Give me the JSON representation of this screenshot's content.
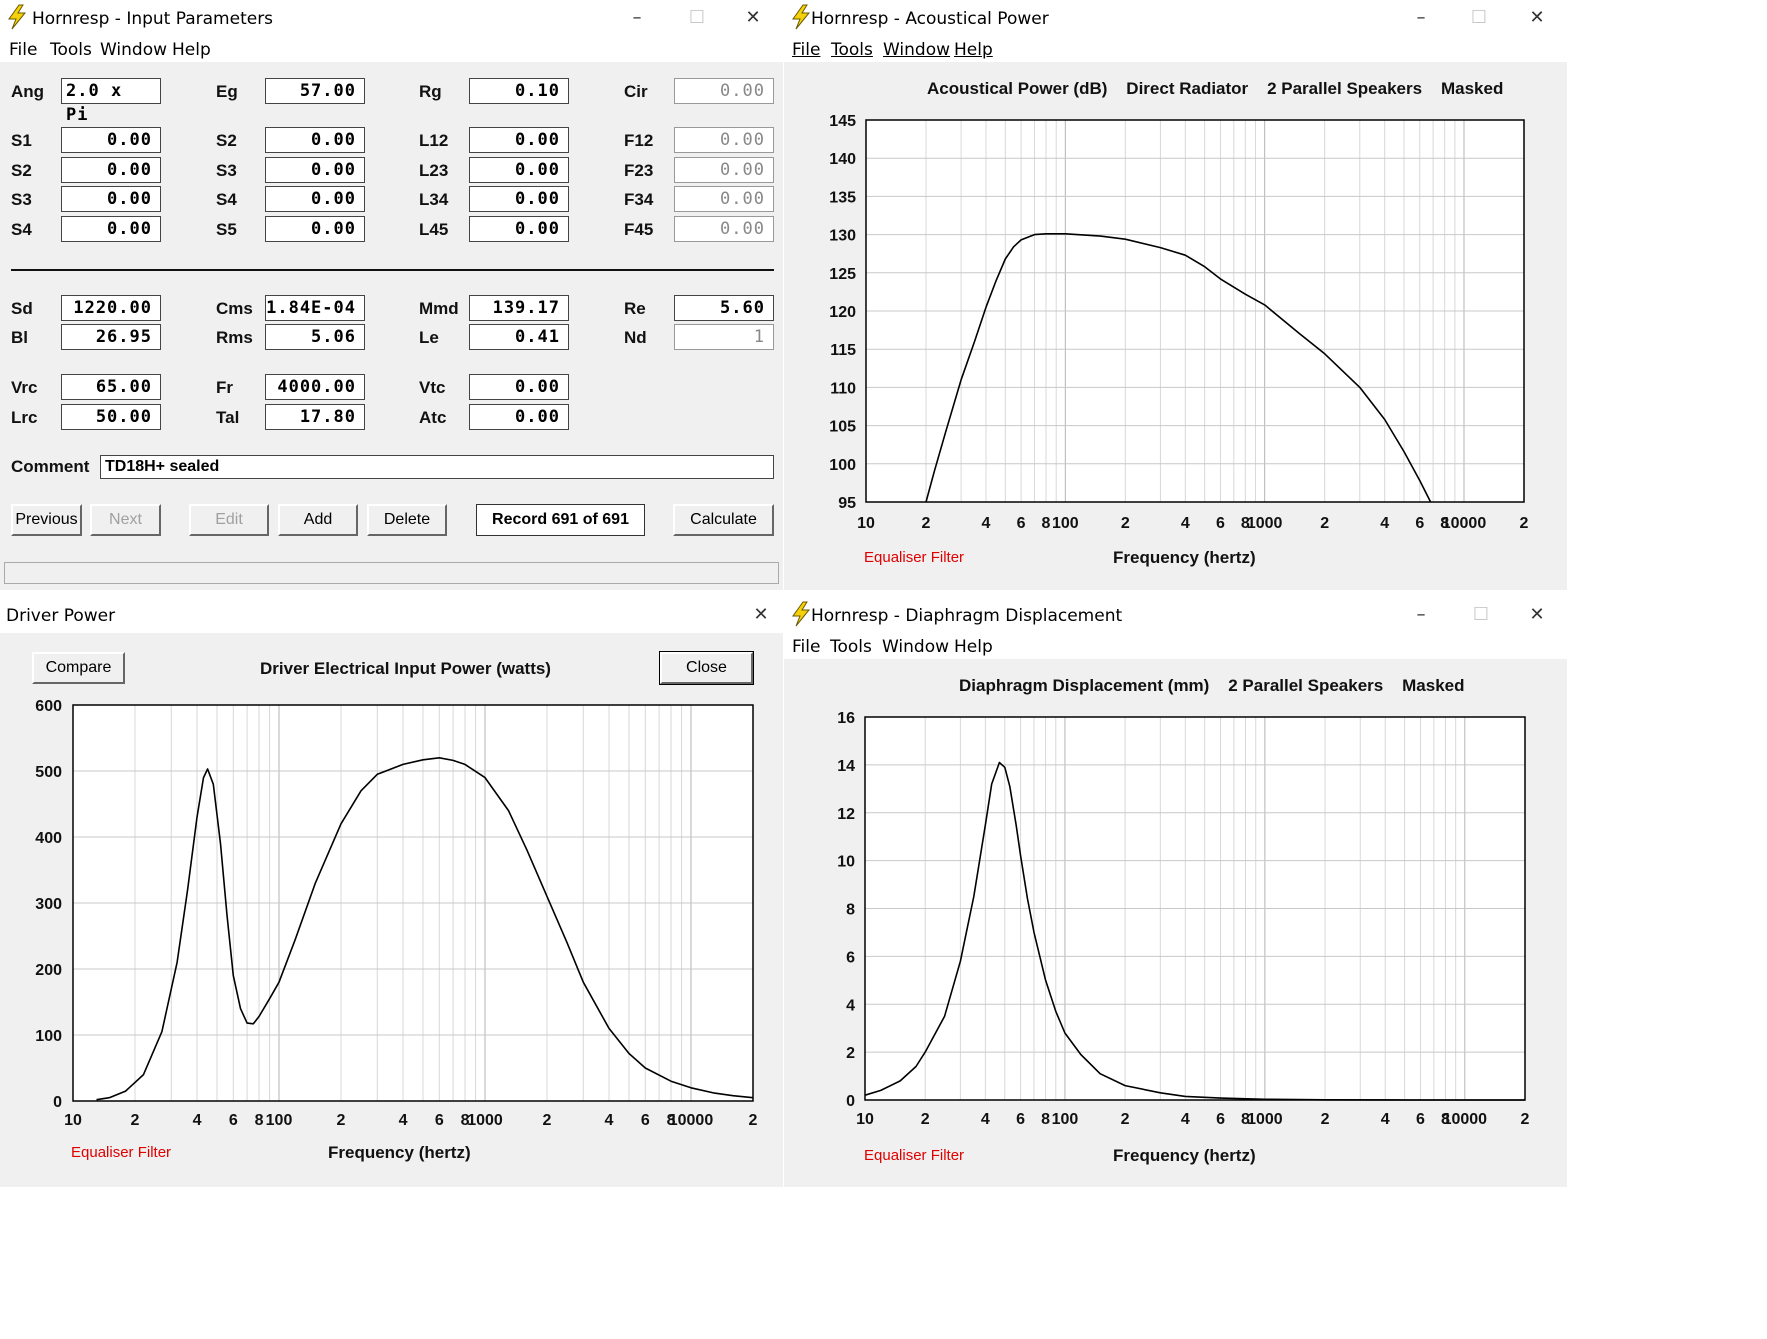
{
  "colors": {
    "curve": "#000000",
    "grid": "#c8c8c8",
    "eq_filter": "#e00000",
    "window_bg": "#f0f0f0"
  },
  "icons": {
    "app": "lightning-bolt-icon",
    "minimize": "minimize-icon",
    "maximize": "maximize-icon",
    "close": "close-icon"
  },
  "window_buttons": {
    "minimize": "–",
    "maximize": "☐",
    "close": "✕"
  },
  "input_window": {
    "title": "Hornresp - Input Parameters",
    "menu": {
      "file": "File",
      "tools": "Tools",
      "window": "Window",
      "help": "Help"
    },
    "params": {
      "Ang": {
        "label": "Ang",
        "value": "2.0 x Pi"
      },
      "Eg": {
        "label": "Eg",
        "value": "57.00"
      },
      "Rg": {
        "label": "Rg",
        "value": "0.10"
      },
      "Cir": {
        "label": "Cir",
        "value": "0.00"
      },
      "S1": {
        "label": "S1",
        "value": "0.00"
      },
      "S2a": {
        "label": "S2",
        "value": "0.00"
      },
      "L12": {
        "label": "L12",
        "value": "0.00"
      },
      "F12": {
        "label": "F12",
        "value": "0.00"
      },
      "S2b": {
        "label": "S2",
        "value": "0.00"
      },
      "S3a": {
        "label": "S3",
        "value": "0.00"
      },
      "L23": {
        "label": "L23",
        "value": "0.00"
      },
      "F23": {
        "label": "F23",
        "value": "0.00"
      },
      "S3b": {
        "label": "S3",
        "value": "0.00"
      },
      "S4a": {
        "label": "S4",
        "value": "0.00"
      },
      "L34": {
        "label": "L34",
        "value": "0.00"
      },
      "F34": {
        "label": "F34",
        "value": "0.00"
      },
      "S4b": {
        "label": "S4",
        "value": "0.00"
      },
      "S5": {
        "label": "S5",
        "value": "0.00"
      },
      "L45": {
        "label": "L45",
        "value": "0.00"
      },
      "F45": {
        "label": "F45",
        "value": "0.00"
      },
      "Sd": {
        "label": "Sd",
        "value": "1220.00"
      },
      "Cms": {
        "label": "Cms",
        "value": "1.84E-04"
      },
      "Mmd": {
        "label": "Mmd",
        "value": "139.17"
      },
      "Re": {
        "label": "Re",
        "value": "5.60"
      },
      "Bl": {
        "label": "Bl",
        "value": "26.95"
      },
      "Rms": {
        "label": "Rms",
        "value": "5.06"
      },
      "Le": {
        "label": "Le",
        "value": "0.41"
      },
      "Nd": {
        "label": "Nd",
        "value": "1"
      },
      "Vrc": {
        "label": "Vrc",
        "value": "65.00"
      },
      "Fr": {
        "label": "Fr",
        "value": "4000.00"
      },
      "Vtc": {
        "label": "Vtc",
        "value": "0.00"
      },
      "Lrc": {
        "label": "Lrc",
        "value": "50.00"
      },
      "Tal": {
        "label": "Tal",
        "value": "17.80"
      },
      "Atc": {
        "label": "Atc",
        "value": "0.00"
      }
    },
    "comment_label": "Comment",
    "comment_value": "TD18H+ sealed",
    "buttons": {
      "previous": "Previous",
      "next": "Next",
      "edit": "Edit",
      "add": "Add",
      "delete": "Delete",
      "calculate": "Calculate"
    },
    "record": "Record 691 of 691"
  },
  "acoustic_window": {
    "title": "Hornresp - Acoustical Power",
    "menu": {
      "file": "File",
      "tools": "Tools",
      "window": "Window",
      "help": "Help"
    },
    "chart_title": "Acoustical Power (dB)    Direct Radiator    2 Parallel Speakers    Masked",
    "eq_filter": "Equaliser Filter",
    "xlabel": "Frequency (hertz)"
  },
  "driver_window": {
    "title": "Driver Power",
    "compare": "Compare",
    "close": "Close",
    "chart_title": "Driver Electrical Input Power (watts)",
    "eq_filter": "Equaliser Filter",
    "xlabel": "Frequency (hertz)"
  },
  "displacement_window": {
    "title": "Hornresp - Diaphragm Displacement",
    "menu": {
      "file": "File",
      "tools": "Tools",
      "window": "Window",
      "help": "Help"
    },
    "chart_title": "Diaphragm Displacement (mm)    2 Parallel Speakers    Masked",
    "eq_filter": "Equaliser Filter",
    "xlabel": "Frequency (hertz)"
  },
  "chart_data": [
    {
      "type": "line",
      "title": "Acoustical Power (dB)    Direct Radiator    2 Parallel Speakers    Masked",
      "xlabel": "Frequency (hertz)",
      "ylabel": "",
      "xscale": "log",
      "xlim": [
        10,
        20000
      ],
      "ylim": [
        95,
        145
      ],
      "yticks": [
        95,
        100,
        105,
        110,
        115,
        120,
        125,
        130,
        135,
        140,
        145
      ],
      "xtick_labels": [
        "10",
        "2",
        "4",
        "6",
        "8",
        "100",
        "2",
        "4",
        "6",
        "8",
        "1000",
        "2",
        "4",
        "6",
        "8",
        "10000",
        "2"
      ],
      "grid": true,
      "series": [
        {
          "x": [
            20,
            22,
            25,
            30,
            35,
            40,
            45,
            50,
            55,
            60,
            70,
            80,
            100,
            150,
            200,
            300,
            400,
            500,
            600,
            800,
            1000,
            1500,
            2000,
            3000,
            4000,
            5000,
            6000,
            6800
          ],
          "y": [
            95,
            99,
            104,
            111,
            116,
            120.5,
            124,
            126.8,
            128.4,
            129.3,
            130,
            130.1,
            130.1,
            129.8,
            129.4,
            128.3,
            127.3,
            125.8,
            124.2,
            122.2,
            120.8,
            117,
            114.4,
            110,
            105.8,
            101.6,
            97.8,
            95
          ]
        }
      ]
    },
    {
      "type": "line",
      "title": "Driver Electrical Input Power (watts)",
      "xlabel": "Frequency (hertz)",
      "ylabel": "",
      "xscale": "log",
      "xlim": [
        10,
        20000
      ],
      "ylim": [
        0,
        600
      ],
      "yticks": [
        0,
        100,
        200,
        300,
        400,
        500,
        600
      ],
      "xtick_labels": [
        "10",
        "2",
        "4",
        "6",
        "8",
        "100",
        "2",
        "4",
        "6",
        "8",
        "1000",
        "2",
        "4",
        "6",
        "8",
        "10000",
        "2"
      ],
      "grid": true,
      "series": [
        {
          "x": [
            13,
            15,
            18,
            22,
            27,
            32,
            36,
            40,
            43,
            45,
            48,
            52,
            56,
            60,
            65,
            70,
            75,
            80,
            90,
            100,
            120,
            150,
            200,
            250,
            300,
            400,
            500,
            600,
            700,
            800,
            1000,
            1300,
            1600,
            2000,
            2500,
            3000,
            4000,
            5000,
            6000,
            8000,
            10000,
            13000,
            16000,
            20000
          ],
          "y": [
            2,
            5,
            15,
            40,
            105,
            210,
            320,
            430,
            490,
            503,
            480,
            390,
            280,
            190,
            140,
            118,
            117,
            128,
            155,
            180,
            245,
            330,
            420,
            470,
            495,
            510,
            517,
            520,
            516,
            510,
            490,
            440,
            380,
            310,
            240,
            180,
            110,
            72,
            50,
            30,
            20,
            12,
            8,
            5
          ]
        }
      ]
    },
    {
      "type": "line",
      "title": "Diaphragm Displacement (mm)    2 Parallel Speakers    Masked",
      "xlabel": "Frequency (hertz)",
      "ylabel": "",
      "xscale": "log",
      "xlim": [
        10,
        20000
      ],
      "ylim": [
        0,
        16
      ],
      "yticks": [
        0,
        2,
        4,
        6,
        8,
        10,
        12,
        14,
        16
      ],
      "xtick_labels": [
        "10",
        "2",
        "4",
        "6",
        "8",
        "100",
        "2",
        "4",
        "6",
        "8",
        "1000",
        "2",
        "4",
        "6",
        "8",
        "10000",
        "2"
      ],
      "grid": true,
      "series": [
        {
          "x": [
            10,
            12,
            15,
            18,
            20,
            25,
            30,
            35,
            40,
            43,
            47,
            50,
            53,
            57,
            60,
            65,
            70,
            80,
            90,
            100,
            120,
            150,
            200,
            300,
            400,
            600,
            1000,
            2000,
            5000,
            10000,
            20000
          ],
          "y": [
            0.2,
            0.4,
            0.8,
            1.4,
            2,
            3.5,
            5.8,
            8.5,
            11.5,
            13.2,
            14.1,
            13.9,
            13.1,
            11.5,
            10.2,
            8.4,
            7,
            5,
            3.7,
            2.8,
            1.9,
            1.1,
            0.6,
            0.3,
            0.15,
            0.08,
            0.03,
            0.01,
            0,
            0,
            0
          ]
        }
      ]
    }
  ]
}
